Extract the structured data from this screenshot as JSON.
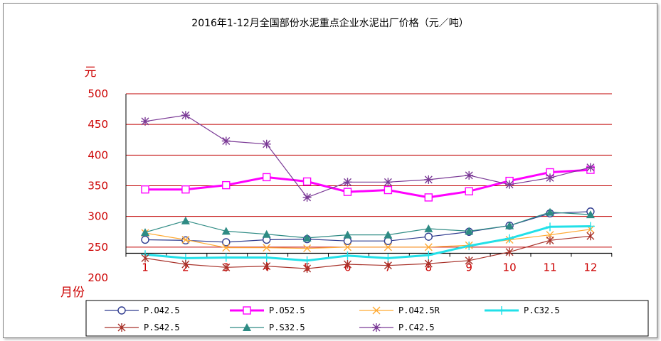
{
  "chart_data": {
    "type": "line",
    "title": "2016年1-12月全国部份水泥重点企业水泥出厂价格（元／吨）",
    "ylabel": "元",
    "xlabel": "月份",
    "categories": [
      "1",
      "2",
      "3",
      "4",
      "5",
      "6",
      "7",
      "8",
      "9",
      "10",
      "11",
      "12"
    ],
    "ylim": [
      200,
      500
    ],
    "yticks": [
      200,
      250,
      300,
      350,
      400,
      450,
      500
    ],
    "grid": true,
    "legend_position": "bottom",
    "series": [
      {
        "name": "P.O42.5",
        "color": "#2f3b8f",
        "marker": "circle",
        "values": [
          262,
          261,
          258,
          262,
          263,
          260,
          260,
          267,
          275,
          285,
          305,
          308
        ]
      },
      {
        "name": "P.O52.5",
        "color": "#ff00ff",
        "marker": "square",
        "values": [
          344,
          344,
          351,
          364,
          357,
          340,
          343,
          331,
          341,
          358,
          372,
          376
        ]
      },
      {
        "name": "P.O42.5R",
        "color": "#ffaa33",
        "marker": "x",
        "values": [
          273,
          262,
          249,
          249,
          248,
          250,
          250,
          250,
          253,
          262,
          270,
          279
        ]
      },
      {
        "name": "P.C32.5",
        "color": "#22e0e8",
        "marker": "plus",
        "values": [
          238,
          232,
          233,
          233,
          228,
          236,
          232,
          237,
          252,
          264,
          283,
          284
        ]
      },
      {
        "name": "P.S42.5",
        "color": "#a8322a",
        "marker": "asterisk",
        "values": [
          232,
          222,
          217,
          219,
          215,
          222,
          220,
          223,
          228,
          242,
          261,
          268
        ]
      },
      {
        "name": "P.S32.5",
        "color": "#2e8b84",
        "marker": "triangle",
        "values": [
          274,
          293,
          276,
          271,
          265,
          270,
          270,
          280,
          276,
          285,
          307,
          303
        ]
      },
      {
        "name": "P.C42.5",
        "color": "#7b3a96",
        "marker": "star",
        "values": [
          455,
          465,
          423,
          418,
          331,
          356,
          356,
          360,
          367,
          352,
          363,
          380
        ]
      }
    ]
  }
}
